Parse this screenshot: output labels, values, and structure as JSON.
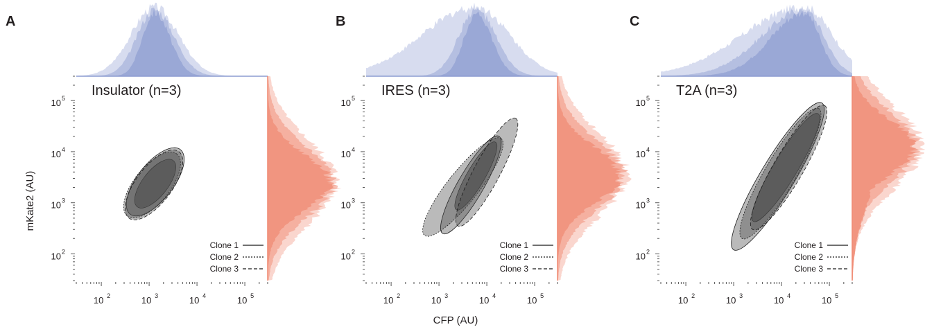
{
  "figure": {
    "ylabel": "mKate2 (AU)",
    "xlabel": "CFP (AU)",
    "axis_scale": "log",
    "colors": {
      "x_hist": "#8c9bd0",
      "y_hist": "#f08a72",
      "contour": "#3a3a3a"
    },
    "legend": {
      "placement": "bottom-right",
      "entries": [
        {
          "label": "Clone 1",
          "line": "solid"
        },
        {
          "label": "Clone 2",
          "line": "dotted"
        },
        {
          "label": "Clone 3",
          "line": "dashed"
        }
      ]
    }
  },
  "chart_data": [
    {
      "panel": "A",
      "title": "Insulator (n=3)",
      "type": "contour",
      "xlim": [
        30,
        300000
      ],
      "ylim": [
        30,
        300000
      ],
      "x_ticks": [
        100,
        1000,
        10000,
        100000
      ],
      "y_ticks": [
        100,
        1000,
        10000,
        100000
      ],
      "x_tick_labels": [
        "10^2",
        "10^3",
        "10^4",
        "10^5"
      ],
      "y_tick_labels": [
        "10^2",
        "10^3",
        "10^4",
        "10^5"
      ],
      "x_hist_peak": 1300,
      "y_hist_peak": 2500,
      "clones": [
        {
          "name": "Clone 1",
          "outer_x": [
            400,
            4500
          ],
          "outer_y": [
            600,
            11000
          ],
          "inner_x": [
            600,
            3000
          ],
          "inner_y": [
            800,
            7000
          ]
        },
        {
          "name": "Clone 2",
          "outer_x": [
            350,
            3800
          ],
          "outer_y": [
            550,
            9000
          ]
        },
        {
          "name": "Clone 3",
          "outer_x": [
            380,
            4200
          ],
          "outer_y": [
            500,
            10000
          ]
        }
      ]
    },
    {
      "panel": "B",
      "title": "IRES (n=3)",
      "type": "contour",
      "xlim": [
        30,
        300000
      ],
      "ylim": [
        30,
        300000
      ],
      "x_ticks": [
        100,
        1000,
        10000,
        100000
      ],
      "y_ticks": [
        100,
        1000,
        10000,
        100000
      ],
      "x_tick_labels": [
        "10^2",
        "10^3",
        "10^4",
        "10^5"
      ],
      "y_tick_labels": [
        "10^2",
        "10^3",
        "10^4",
        "10^5"
      ],
      "x_hist_peak": 6000,
      "y_hist_peak": 3500,
      "clones": [
        {
          "name": "Clone 1",
          "outer_x": [
            1200,
            18000
          ],
          "outer_y": [
            250,
            20000
          ],
          "inner_x": [
            2500,
            14000
          ],
          "inner_y": [
            700,
            16000
          ]
        },
        {
          "name": "Clone 2",
          "outer_x": [
            500,
            20000
          ],
          "outer_y": [
            230,
            18000
          ]
        },
        {
          "name": "Clone 3",
          "outer_x": [
            2500,
            40000
          ],
          "outer_y": [
            350,
            45000
          ]
        }
      ]
    },
    {
      "panel": "C",
      "title": "T2A (n=3)",
      "type": "contour",
      "xlim": [
        30,
        300000
      ],
      "ylim": [
        30,
        300000
      ],
      "x_ticks": [
        100,
        1000,
        10000,
        100000
      ],
      "y_ticks": [
        100,
        1000,
        10000,
        100000
      ],
      "x_tick_labels": [
        "10^2",
        "10^3",
        "10^4",
        "10^5"
      ],
      "y_tick_labels": [
        "10^2",
        "10^3",
        "10^4",
        "10^5"
      ],
      "x_hist_peak": 30000,
      "y_hist_peak": 12000,
      "clones": [
        {
          "name": "Clone 1",
          "outer_x": [
            1000,
            70000
          ],
          "outer_y": [
            120,
            90000
          ],
          "inner_x": [
            3000,
            50000
          ],
          "inner_y": [
            400,
            60000
          ]
        },
        {
          "name": "Clone 2",
          "outer_x": [
            1500,
            60000
          ],
          "outer_y": [
            200,
            70000
          ]
        },
        {
          "name": "Clone 3",
          "outer_x": [
            2500,
            80000
          ],
          "outer_y": [
            300,
            80000
          ]
        }
      ]
    }
  ]
}
